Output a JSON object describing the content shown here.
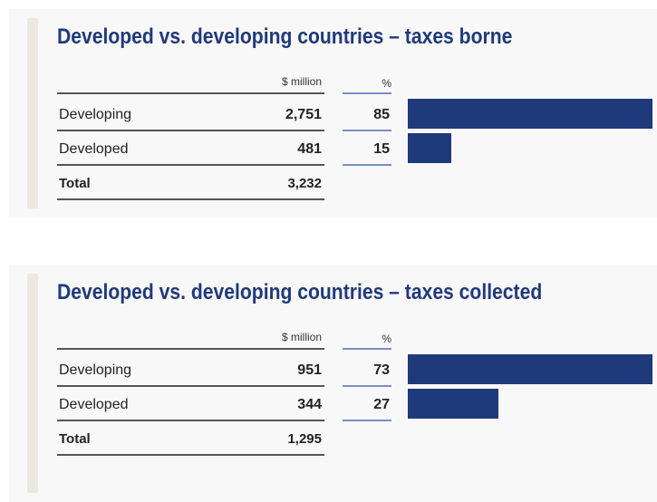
{
  "tables": [
    {
      "title": "Developed vs. developing countries – taxes borne",
      "columns": [
        "$ million",
        "%"
      ],
      "rows": [
        {
          "label": "Developing",
          "million": "2,751",
          "percent": 85
        },
        {
          "label": "Developed",
          "million": "481",
          "percent": 15
        }
      ],
      "total": {
        "label": "Total",
        "million": "3,232"
      }
    },
    {
      "title": "Developed vs. developing countries – taxes collected",
      "columns": [
        "$ million",
        "%"
      ],
      "rows": [
        {
          "label": "Developing",
          "million": "951",
          "percent": 73
        },
        {
          "label": "Developed",
          "million": "344",
          "percent": 27
        }
      ],
      "total": {
        "label": "Total",
        "million": "1,295"
      }
    }
  ]
}
